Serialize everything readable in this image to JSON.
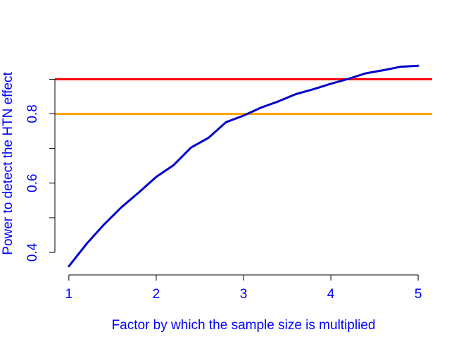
{
  "chart_data": {
    "type": "line",
    "title": "",
    "xlabel": "Factor by which the sample size is multiplied",
    "ylabel": "Power to detect the HTN effect",
    "xlim": [
      0.84,
      5.16
    ],
    "ylim": [
      0.335,
      0.97
    ],
    "x_ticks": [
      1,
      2,
      3,
      4,
      5
    ],
    "x_tick_labels": [
      "1",
      "2",
      "3",
      "4",
      "5"
    ],
    "y_ticks": [
      0.4,
      0.5,
      0.6,
      0.7,
      0.8,
      0.9
    ],
    "y_tick_labels": [
      "0.4",
      "",
      "0.6",
      "",
      "0.8",
      ""
    ],
    "grid": false,
    "label_color": "#0000ff",
    "series": [
      {
        "color": "#0000cd",
        "x": [
          1.0,
          1.2,
          1.4,
          1.6,
          1.8,
          2.0,
          2.2,
          2.4,
          2.6,
          2.8,
          3.0,
          3.2,
          3.4,
          3.6,
          3.8,
          4.0,
          4.2,
          4.4,
          4.6,
          4.8,
          5.0
        ],
        "y": [
          0.36,
          0.424,
          0.48,
          0.53,
          0.573,
          0.618,
          0.652,
          0.703,
          0.731,
          0.776,
          0.795,
          0.818,
          0.836,
          0.857,
          0.871,
          0.887,
          0.901,
          0.917,
          0.926,
          0.936,
          0.939
        ]
      }
    ],
    "hlines": [
      {
        "y": 0.9,
        "color": "#ff0000"
      },
      {
        "y": 0.8,
        "color": "#ffa500"
      }
    ]
  }
}
